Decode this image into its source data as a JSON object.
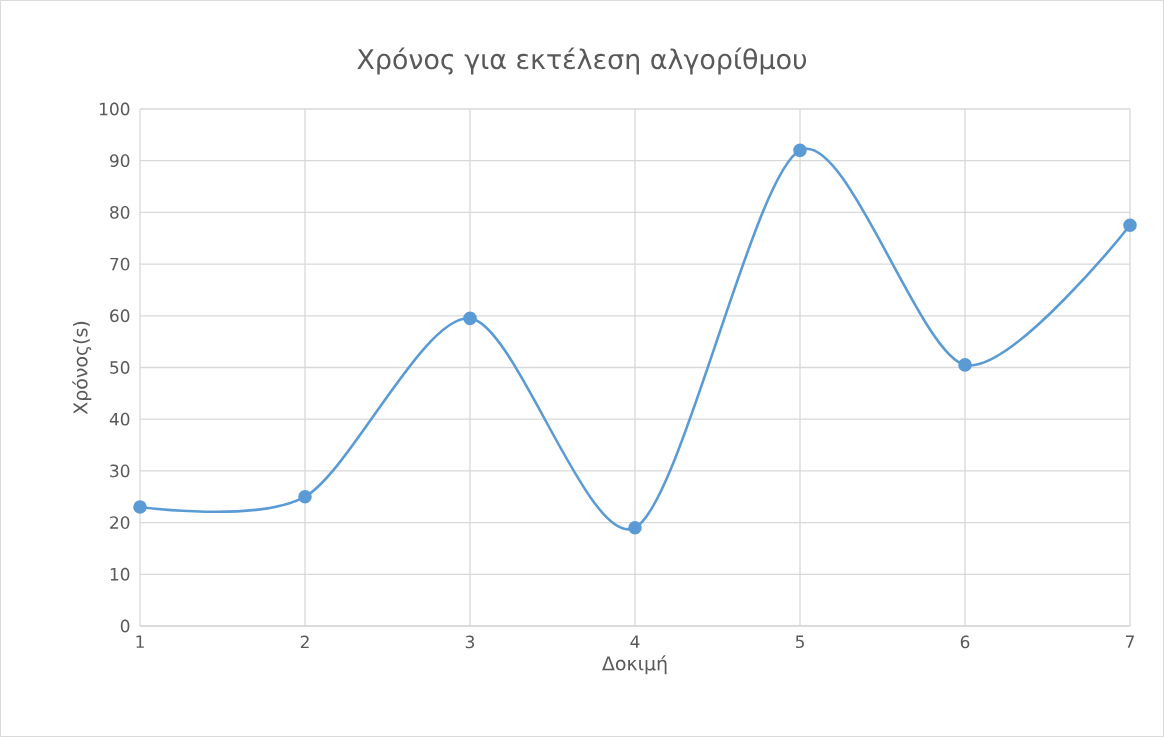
{
  "chart_data": {
    "type": "line",
    "title": "Χρόνος για εκτέλεση αλγορίθμου",
    "xlabel": "Δοκιμή",
    "ylabel": "Χρόνος(s)",
    "x": [
      1,
      2,
      3,
      4,
      5,
      6,
      7
    ],
    "series": [
      {
        "color": "#5b9bd5",
        "values": [
          23,
          25,
          59.5,
          19,
          92,
          50.5,
          77.5
        ]
      }
    ],
    "xlim": [
      1,
      7
    ],
    "xticks": [
      1,
      2,
      3,
      4,
      5,
      6,
      7
    ],
    "ylim": [
      0,
      100
    ],
    "yticks": [
      0,
      10,
      20,
      30,
      40,
      50,
      60,
      70,
      80,
      90,
      100
    ],
    "grid": true,
    "marker": "circle",
    "line_style": "solid"
  }
}
